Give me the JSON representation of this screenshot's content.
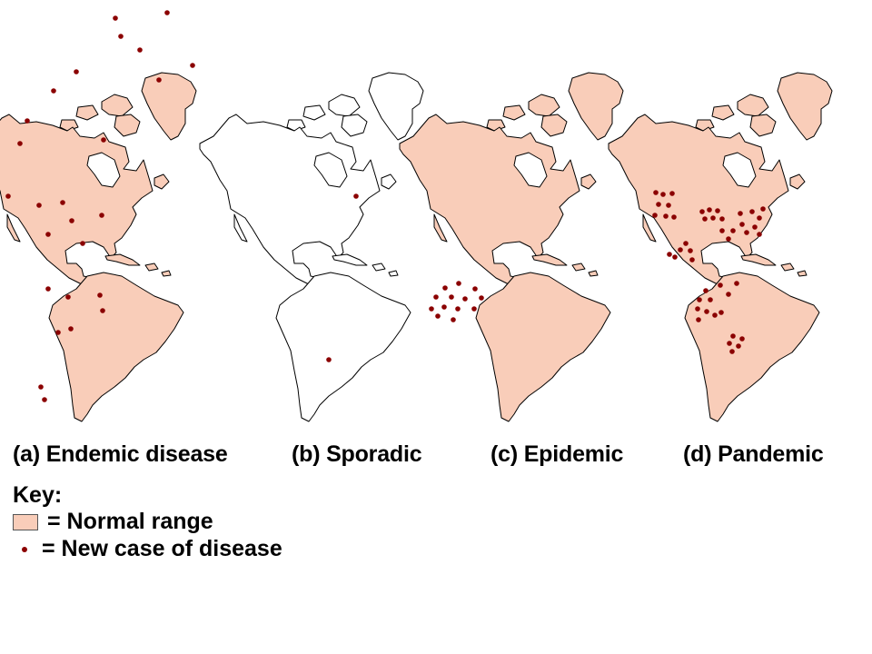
{
  "colors": {
    "normal_range": "#f9cdb9",
    "case_dot": "#8b0000",
    "outline": "#000000"
  },
  "panels": [
    {
      "label": "(a) Endemic disease",
      "filled": true,
      "cases": [
        [
          7,
          20
        ],
        [
          64,
          14
        ],
        [
          13,
          40
        ],
        [
          34,
          55
        ],
        [
          55,
          88
        ],
        [
          92,
          72
        ],
        [
          -36,
          79
        ],
        [
          -61,
          100
        ],
        [
          -90,
          133
        ],
        [
          -145,
          183
        ],
        [
          -98,
          158
        ],
        [
          -6,
          154
        ],
        [
          -111,
          216
        ],
        [
          -77,
          226
        ],
        [
          -51,
          223
        ],
        [
          -41,
          243
        ],
        [
          -8,
          237
        ],
        [
          -29,
          268
        ],
        [
          -67,
          258
        ],
        [
          -67,
          318
        ],
        [
          -45,
          327
        ],
        [
          -10,
          325
        ],
        [
          -7,
          342
        ],
        [
          -42,
          362
        ],
        [
          -56,
          366
        ],
        [
          -75,
          426
        ],
        [
          -71,
          440
        ]
      ]
    },
    {
      "label": "(b) Sporadic",
      "filled": false,
      "cases": [
        [
          22,
          216
        ],
        [
          -8,
          396
        ]
      ]
    },
    {
      "label": "(c) Epidemic",
      "filled": true,
      "cases": [
        [
          -100,
          317
        ],
        [
          -85,
          312
        ],
        [
          -67,
          318
        ],
        [
          -110,
          327
        ],
        [
          -93,
          327
        ],
        [
          -78,
          329
        ],
        [
          -60,
          328
        ],
        [
          -101,
          338
        ],
        [
          -86,
          340
        ],
        [
          -68,
          340
        ],
        [
          -115,
          340
        ],
        [
          -108,
          348
        ],
        [
          -91,
          352
        ]
      ]
    },
    {
      "label": "(d) Pandemic",
      "filled": true,
      "cases": [
        [
          -98,
          212
        ],
        [
          -90,
          214
        ],
        [
          -80,
          213
        ],
        [
          -95,
          225
        ],
        [
          -84,
          226
        ],
        [
          -99,
          237
        ],
        [
          -87,
          238
        ],
        [
          -78,
          239
        ],
        [
          -47,
          233
        ],
        [
          -39,
          231
        ],
        [
          -30,
          232
        ],
        [
          -44,
          241
        ],
        [
          -35,
          240
        ],
        [
          -25,
          241
        ],
        [
          -5,
          235
        ],
        [
          -3,
          247
        ],
        [
          2,
          256
        ],
        [
          -13,
          254
        ],
        [
          -25,
          254
        ],
        [
          -18,
          263
        ],
        [
          8,
          233
        ],
        [
          16,
          240
        ],
        [
          11,
          250
        ],
        [
          16,
          258
        ],
        [
          20,
          230
        ],
        [
          -65,
          268
        ],
        [
          -71,
          275
        ],
        [
          -77,
          283
        ],
        [
          -60,
          276
        ],
        [
          -83,
          280
        ],
        [
          -58,
          286
        ],
        [
          -9,
          312
        ],
        [
          -27,
          314
        ],
        [
          -18,
          324
        ],
        [
          -43,
          320
        ],
        [
          -50,
          330
        ],
        [
          -38,
          330
        ],
        [
          -52,
          340
        ],
        [
          -42,
          343
        ],
        [
          -33,
          347
        ],
        [
          -51,
          352
        ],
        [
          -26,
          344
        ],
        [
          -13,
          370
        ],
        [
          -3,
          373
        ],
        [
          -17,
          378
        ],
        [
          -7,
          381
        ],
        [
          -14,
          387
        ]
      ]
    }
  ],
  "key": {
    "title": "Key:",
    "normal_range_label": "= Normal range",
    "new_case_label": "= New case of disease"
  }
}
